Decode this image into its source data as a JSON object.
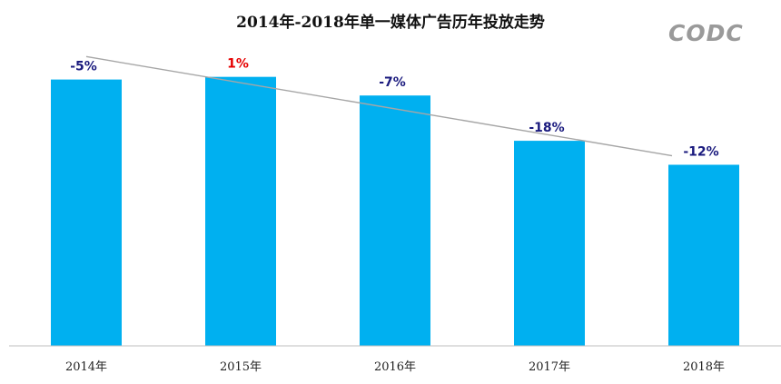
{
  "title": "2014年-2018年单一媒体广告历年投放走势",
  "logo": "CODC",
  "colors": {
    "bar": "#00b0f0",
    "trendline": "#a6a6a6",
    "negative_label": "#1a1a7e",
    "positive_label": "#e60000",
    "axis": "#bfbfbf"
  },
  "chart_data": {
    "type": "bar",
    "title": "2014年-2018年单一媒体广告历年投放走势",
    "categories": [
      "2014年",
      "2015年",
      "2016年",
      "2017年",
      "2018年"
    ],
    "values": [
      100,
      101,
      94,
      77,
      68
    ],
    "data_labels": [
      "-5%",
      "1%",
      "-7%",
      "-18%",
      "-12%"
    ],
    "xlabel": "",
    "ylabel": "",
    "ylim": [
      0,
      106
    ],
    "grid": false,
    "legend": "none",
    "trendline": "linear"
  }
}
